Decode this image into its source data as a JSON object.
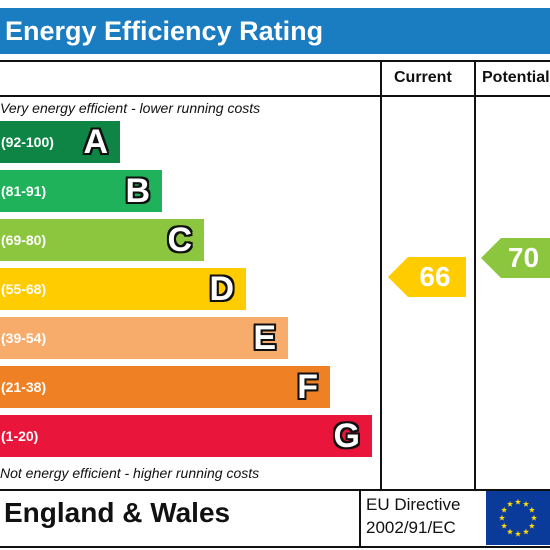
{
  "header": {
    "title": "Energy Efficiency Rating"
  },
  "columns": {
    "current": "Current",
    "potential": "Potential"
  },
  "captions": {
    "top": "Very energy efficient - lower running costs",
    "bottom": "Not energy efficient - higher running costs"
  },
  "bands": [
    {
      "range": "(92-100)",
      "letter": "A",
      "color": "#0e8445"
    },
    {
      "range": "(81-91)",
      "letter": "B",
      "color": "#1fb25a"
    },
    {
      "range": "(69-80)",
      "letter": "C",
      "color": "#8cc63f"
    },
    {
      "range": "(55-68)",
      "letter": "D",
      "color": "#ffcc00"
    },
    {
      "range": "(39-54)",
      "letter": "E",
      "color": "#f7ac6b"
    },
    {
      "range": "(21-38)",
      "letter": "F",
      "color": "#ef8023"
    },
    {
      "range": "(1-20)",
      "letter": "G",
      "color": "#e9153b"
    }
  ],
  "ratings": {
    "current": {
      "value": "66",
      "color": "#ffcc00"
    },
    "potential": {
      "value": "70",
      "color": "#8cc63f"
    }
  },
  "footer": {
    "region": "England & Wales",
    "directive_line1": "EU Directive",
    "directive_line2": "2002/91/EC"
  }
}
